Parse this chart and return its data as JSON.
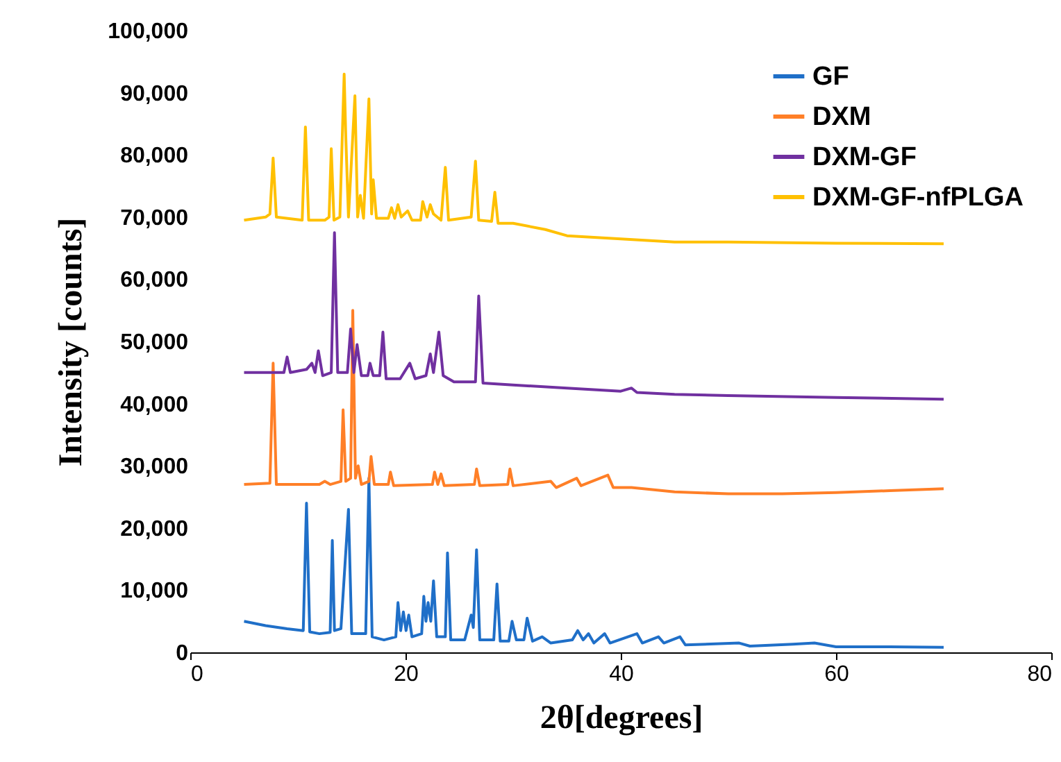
{
  "chart_data": {
    "type": "line",
    "xlabel": "2θ[degrees]",
    "ylabel": "Intensity [counts]",
    "xlim": [
      0,
      80
    ],
    "xticks": [
      0,
      20,
      40,
      60,
      80
    ],
    "ylim": [
      0,
      100000
    ],
    "yticks": [
      {
        "value": 0,
        "label": "0"
      },
      {
        "value": 10000,
        "label": "10,000"
      },
      {
        "value": 20000,
        "label": "20,000"
      },
      {
        "value": 30000,
        "label": "30,000"
      },
      {
        "value": 40000,
        "label": "40,000"
      },
      {
        "value": 50000,
        "label": "50,000"
      },
      {
        "value": 60000,
        "label": "60,000"
      },
      {
        "value": 70000,
        "label": "70,000"
      },
      {
        "value": 80000,
        "label": "80,000"
      },
      {
        "value": 90000,
        "label": "90,000"
      },
      {
        "value": 100000,
        "label": "100,000"
      }
    ],
    "grid": false,
    "legend": "top right",
    "marker": "none",
    "line_style": "solid",
    "series": [
      {
        "name": "GF",
        "color": "#1f6fc8",
        "x": [
          5,
          7,
          9,
          10.5,
          10.8,
          11.1,
          12,
          13.0,
          13.2,
          13.4,
          14.0,
          14.7,
          15.0,
          16.3,
          16.6,
          16.9,
          18.0,
          19.1,
          19.3,
          19.55,
          19.8,
          20.05,
          20.3,
          20.6,
          21.5,
          21.7,
          21.9,
          22.1,
          22.35,
          22.6,
          22.9,
          23.7,
          23.9,
          24.2,
          25.5,
          26.1,
          26.3,
          26.6,
          26.9,
          28.2,
          28.5,
          28.8,
          29.6,
          29.9,
          30.3,
          31.0,
          31.3,
          31.8,
          32.7,
          33.5,
          35.5,
          36,
          36.5,
          37,
          37.5,
          38.5,
          39,
          41.5,
          42,
          43.5,
          44,
          45.5,
          46,
          51,
          52,
          56,
          58,
          60,
          65,
          70
        ],
        "values": [
          5000,
          4300,
          3800,
          3500,
          24000,
          3300,
          3000,
          3200,
          18000,
          3500,
          3800,
          23000,
          3000,
          3000,
          28000,
          2500,
          2000,
          2500,
          8000,
          3500,
          6500,
          3500,
          6000,
          2500,
          3000,
          9000,
          5000,
          8000,
          5000,
          11500,
          2500,
          2500,
          16000,
          2000,
          2000,
          6000,
          4000,
          16500,
          2000,
          2000,
          11000,
          1800,
          1800,
          5000,
          2000,
          2000,
          5500,
          1800,
          2500,
          1500,
          2000,
          3500,
          2000,
          3000,
          1500,
          3000,
          1500,
          3000,
          1500,
          2500,
          1500,
          2500,
          1200,
          1500,
          1000,
          1300,
          1500,
          900,
          900,
          800
        ]
      },
      {
        "name": "DXM",
        "color": "#ff7f27",
        "x": [
          5,
          7.4,
          7.7,
          8.0,
          12,
          12.5,
          13,
          14.0,
          14.2,
          14.45,
          14.9,
          15.1,
          15.35,
          15.6,
          15.9,
          16.6,
          16.8,
          17.1,
          18.4,
          18.6,
          18.9,
          22.5,
          22.7,
          23.0,
          23.3,
          23.6,
          26.4,
          26.6,
          26.9,
          29.5,
          29.7,
          30.0,
          33.5,
          34,
          35.9,
          36.3,
          38.8,
          39.3,
          41,
          45,
          50,
          55,
          60,
          65,
          70
        ],
        "values": [
          27000,
          27200,
          46500,
          27000,
          27000,
          27500,
          27000,
          27500,
          39000,
          27500,
          28000,
          55000,
          28000,
          30000,
          27000,
          27500,
          31500,
          27000,
          27000,
          29000,
          26800,
          27000,
          29000,
          27000,
          28700,
          26800,
          27000,
          29500,
          26800,
          27000,
          29500,
          26800,
          27500,
          26500,
          28000,
          26800,
          28500,
          26500,
          26500,
          25800,
          25500,
          25500,
          25700,
          26000,
          26300
        ]
      },
      {
        "name": "DXM-GF",
        "color": "#7030a0",
        "x": [
          5,
          8.7,
          9.0,
          9.3,
          10.8,
          11.3,
          11.6,
          11.9,
          12.3,
          13.1,
          13.4,
          13.7,
          14.6,
          14.9,
          15.2,
          15.5,
          15.9,
          16.5,
          16.7,
          17.0,
          17.6,
          17.9,
          18.2,
          19.5,
          20.4,
          20.9,
          21.9,
          22.3,
          22.6,
          23.1,
          23.5,
          24.5,
          26.5,
          26.8,
          27.2,
          30,
          35,
          40,
          41,
          41.5,
          45,
          50,
          60,
          70
        ],
        "values": [
          45000,
          45000,
          47500,
          45000,
          45500,
          46500,
          45000,
          48500,
          44500,
          45000,
          67500,
          45000,
          45000,
          52000,
          45000,
          49500,
          44500,
          44500,
          46500,
          44500,
          44500,
          51500,
          44000,
          44000,
          46500,
          44000,
          44500,
          48000,
          45000,
          51500,
          44500,
          43500,
          43500,
          57300,
          43300,
          43000,
          42500,
          42000,
          42500,
          41800,
          41500,
          41300,
          41000,
          40700
        ]
      },
      {
        "name": "DXM-GF-nfPLGA",
        "color": "#ffc000",
        "x": [
          5,
          7.0,
          7.4,
          7.7,
          8.0,
          10.4,
          10.7,
          11.0,
          12.5,
          12.9,
          13.1,
          13.35,
          13.9,
          14.3,
          14.45,
          14.7,
          15.3,
          15.55,
          15.8,
          16.1,
          16.6,
          16.85,
          17.0,
          17.3,
          18.4,
          18.7,
          19.0,
          19.3,
          19.6,
          20.2,
          20.6,
          21.4,
          21.6,
          22.0,
          22.3,
          22.6,
          23.3,
          23.7,
          24.0,
          26.1,
          26.5,
          26.8,
          28.0,
          28.3,
          28.6,
          30,
          33,
          35,
          40,
          45,
          50,
          60,
          70
        ],
        "values": [
          69500,
          70000,
          70500,
          79500,
          70000,
          69500,
          84500,
          69500,
          69500,
          70000,
          81000,
          69500,
          70000,
          93000,
          83000,
          70000,
          89500,
          70000,
          73500,
          69800,
          89000,
          70500,
          76000,
          69800,
          69800,
          71500,
          69800,
          72000,
          70000,
          71000,
          69500,
          69500,
          72500,
          70000,
          72000,
          70500,
          69500,
          78000,
          69500,
          70000,
          79000,
          69500,
          69300,
          74000,
          69000,
          69000,
          68000,
          67000,
          66500,
          66000,
          66000,
          65800,
          65700
        ]
      }
    ]
  }
}
